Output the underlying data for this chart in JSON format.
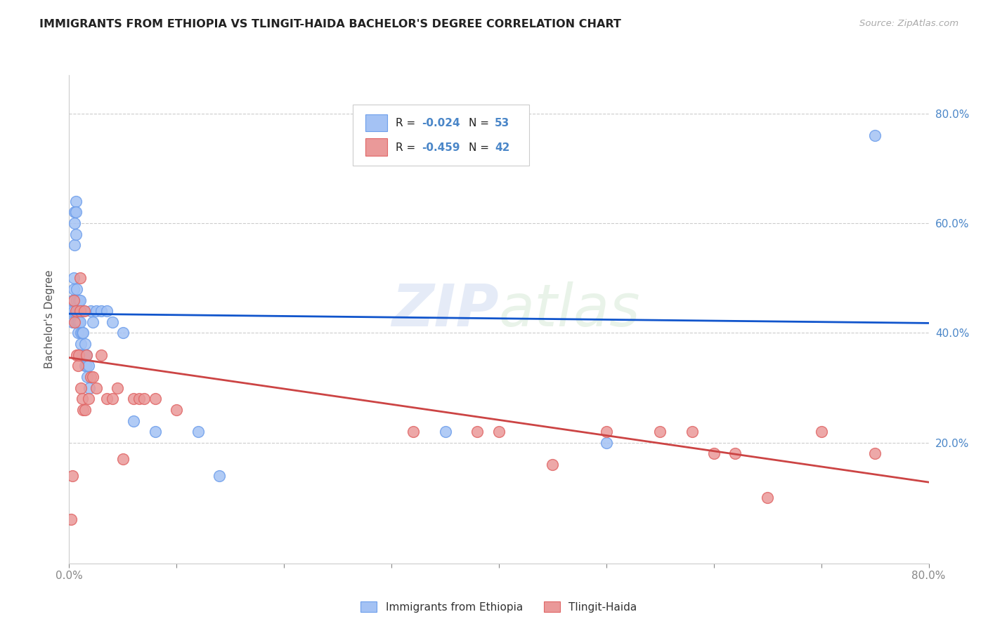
{
  "title": "IMMIGRANTS FROM ETHIOPIA VS TLINGIT-HAIDA BACHELOR'S DEGREE CORRELATION CHART",
  "source": "Source: ZipAtlas.com",
  "ylabel": "Bachelor's Degree",
  "legend_blue_r": "R = -0.024",
  "legend_blue_n": "N = 53",
  "legend_pink_r": "R = -0.459",
  "legend_pink_n": "N = 42",
  "legend_label_blue": "Immigrants from Ethiopia",
  "legend_label_pink": "Tlingit-Haida",
  "right_ytick_vals": [
    0.2,
    0.4,
    0.6,
    0.8
  ],
  "right_ytick_labels": [
    "20.0%",
    "40.0%",
    "60.0%",
    "80.0%"
  ],
  "xlim": [
    0.0,
    0.8
  ],
  "ylim": [
    -0.02,
    0.87
  ],
  "blue_color": "#a4c2f4",
  "pink_color": "#ea9999",
  "blue_edge_color": "#6d9eeb",
  "pink_edge_color": "#e06666",
  "blue_line_color": "#1155cc",
  "pink_line_color": "#cc4444",
  "grid_color": "#cccccc",
  "axis_label_color": "#4a86c8",
  "watermark": "ZIPatlas",
  "blue_scatter_x": [
    0.002,
    0.003,
    0.003,
    0.004,
    0.004,
    0.004,
    0.005,
    0.005,
    0.005,
    0.006,
    0.006,
    0.006,
    0.007,
    0.007,
    0.007,
    0.007,
    0.008,
    0.008,
    0.008,
    0.009,
    0.009,
    0.009,
    0.01,
    0.01,
    0.01,
    0.011,
    0.011,
    0.012,
    0.012,
    0.013,
    0.013,
    0.014,
    0.015,
    0.015,
    0.016,
    0.016,
    0.017,
    0.018,
    0.019,
    0.02,
    0.022,
    0.025,
    0.03,
    0.035,
    0.04,
    0.05,
    0.06,
    0.08,
    0.12,
    0.14,
    0.35,
    0.5,
    0.75
  ],
  "blue_scatter_y": [
    0.44,
    0.42,
    0.46,
    0.5,
    0.48,
    0.44,
    0.56,
    0.6,
    0.62,
    0.64,
    0.58,
    0.62,
    0.42,
    0.44,
    0.48,
    0.46,
    0.44,
    0.42,
    0.4,
    0.44,
    0.46,
    0.42,
    0.44,
    0.46,
    0.42,
    0.4,
    0.38,
    0.4,
    0.36,
    0.44,
    0.4,
    0.36,
    0.38,
    0.34,
    0.34,
    0.36,
    0.32,
    0.34,
    0.3,
    0.44,
    0.42,
    0.44,
    0.44,
    0.44,
    0.42,
    0.4,
    0.24,
    0.22,
    0.22,
    0.14,
    0.22,
    0.2,
    0.76
  ],
  "pink_scatter_x": [
    0.002,
    0.003,
    0.004,
    0.005,
    0.006,
    0.007,
    0.008,
    0.009,
    0.01,
    0.01,
    0.011,
    0.012,
    0.013,
    0.014,
    0.015,
    0.016,
    0.018,
    0.02,
    0.022,
    0.025,
    0.03,
    0.035,
    0.04,
    0.045,
    0.05,
    0.06,
    0.065,
    0.07,
    0.08,
    0.1,
    0.32,
    0.38,
    0.4,
    0.45,
    0.5,
    0.55,
    0.58,
    0.6,
    0.62,
    0.65,
    0.7,
    0.75
  ],
  "pink_scatter_y": [
    0.06,
    0.14,
    0.46,
    0.42,
    0.44,
    0.36,
    0.34,
    0.36,
    0.44,
    0.5,
    0.3,
    0.28,
    0.26,
    0.44,
    0.26,
    0.36,
    0.28,
    0.32,
    0.32,
    0.3,
    0.36,
    0.28,
    0.28,
    0.3,
    0.17,
    0.28,
    0.28,
    0.28,
    0.28,
    0.26,
    0.22,
    0.22,
    0.22,
    0.16,
    0.22,
    0.22,
    0.22,
    0.18,
    0.18,
    0.1,
    0.22,
    0.18
  ],
  "blue_trend_x0": 0.0,
  "blue_trend_x1": 0.8,
  "blue_trend_y0": 0.435,
  "blue_trend_y1": 0.418,
  "pink_trend_x0": 0.0,
  "pink_trend_x1": 0.8,
  "pink_trend_y0": 0.355,
  "pink_trend_y1": 0.128
}
